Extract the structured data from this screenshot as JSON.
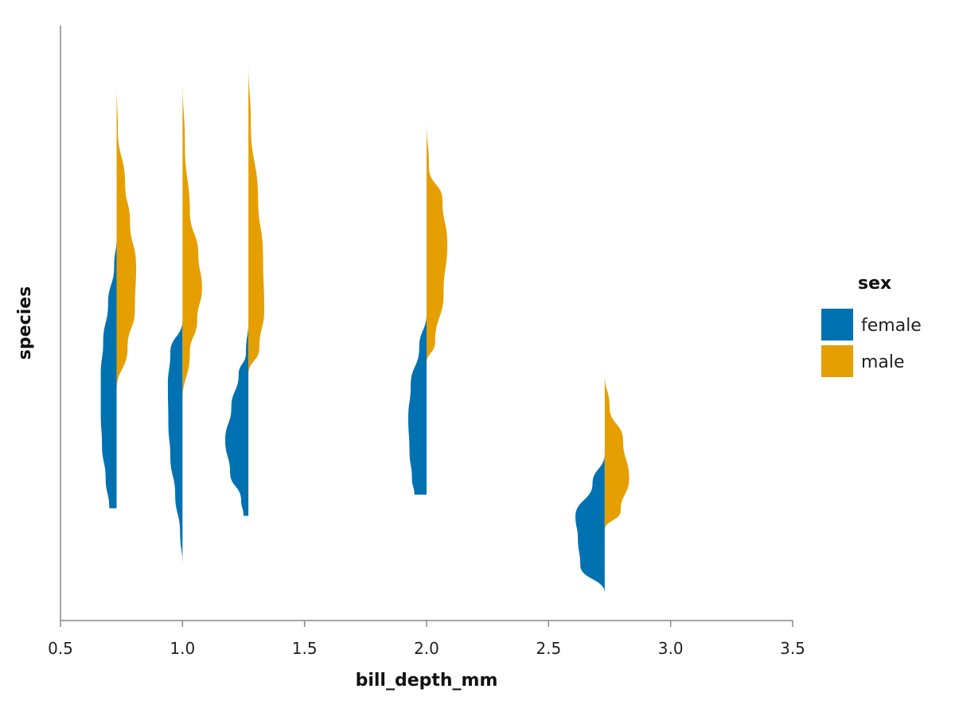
{
  "chart_data": {
    "type": "violin",
    "orientation": "horizontal-split",
    "xlabel": "bill_depth_mm",
    "ylabel": "species",
    "xlim": [
      0.5,
      3.5
    ],
    "x_ticks": [
      0.5,
      1.0,
      1.5,
      2.0,
      2.5,
      3.0,
      3.5
    ],
    "x_tick_labels": [
      "0.5",
      "1.0",
      "1.5",
      "2.0",
      "2.5",
      "3.0",
      "3.5"
    ],
    "y_range": [
      0,
      1
    ],
    "grid": false,
    "legend": {
      "title": "sex",
      "placement": "right",
      "entries": [
        {
          "name": "female",
          "color": "#0072B2"
        },
        {
          "name": "male",
          "color": "#E69F00"
        }
      ]
    },
    "violins": [
      {
        "x": 0.73,
        "female": {
          "y": [
            0.651,
            0.6,
            0.53,
            0.46,
            0.4,
            0.33,
            0.27,
            0.21,
            0.155
          ],
          "w": [
            0.0,
            0.01,
            0.035,
            0.055,
            0.065,
            0.065,
            0.06,
            0.045,
            0.03
          ]
        },
        "male": {
          "y": [
            0.933,
            0.85,
            0.75,
            0.68,
            0.6,
            0.52,
            0.45,
            0.37
          ],
          "w": [
            0.0,
            0.005,
            0.035,
            0.055,
            0.08,
            0.075,
            0.045,
            0.0
          ]
        }
      },
      {
        "x": 1.0,
        "female": {
          "y": [
            0.5,
            0.44,
            0.38,
            0.31,
            0.25,
            0.18,
            0.11,
            0.052
          ],
          "w": [
            0.0,
            0.05,
            0.06,
            0.058,
            0.05,
            0.03,
            0.01,
            0.0
          ]
        },
        "male": {
          "y": [
            0.942,
            0.82,
            0.7,
            0.62,
            0.56,
            0.5,
            0.44,
            0.35
          ],
          "w": [
            0.0,
            0.01,
            0.03,
            0.065,
            0.08,
            0.06,
            0.03,
            0.0
          ]
        }
      },
      {
        "x": 1.27,
        "female": {
          "y": [
            0.5,
            0.44,
            0.4,
            0.34,
            0.28,
            0.22,
            0.17,
            0.141
          ],
          "w": [
            0.0,
            0.01,
            0.04,
            0.07,
            0.095,
            0.075,
            0.03,
            0.02
          ]
        },
        "male": {
          "y": [
            0.975,
            0.86,
            0.72,
            0.62,
            0.52,
            0.45,
            0.4
          ],
          "w": [
            0.0,
            0.01,
            0.04,
            0.06,
            0.065,
            0.045,
            0.0
          ]
        }
      },
      {
        "x": 2.0,
        "female": {
          "y": [
            0.512,
            0.45,
            0.38,
            0.32,
            0.26,
            0.21,
            0.18
          ],
          "w": [
            0.0,
            0.03,
            0.065,
            0.075,
            0.07,
            0.06,
            0.05
          ]
        },
        "male": {
          "y": [
            0.866,
            0.78,
            0.72,
            0.64,
            0.55,
            0.46,
            0.42
          ],
          "w": [
            0.0,
            0.01,
            0.065,
            0.085,
            0.07,
            0.035,
            0.0
          ]
        }
      },
      {
        "x": 2.73,
        "female": {
          "y": [
            0.255,
            0.2,
            0.14,
            0.1,
            0.05,
            0.0
          ],
          "w": [
            0.0,
            0.05,
            0.12,
            0.11,
            0.1,
            0.0
          ]
        },
        "male": {
          "y": [
            0.402,
            0.34,
            0.28,
            0.21,
            0.15,
            0.115
          ],
          "w": [
            0.0,
            0.02,
            0.075,
            0.1,
            0.065,
            0.0
          ]
        }
      }
    ]
  }
}
